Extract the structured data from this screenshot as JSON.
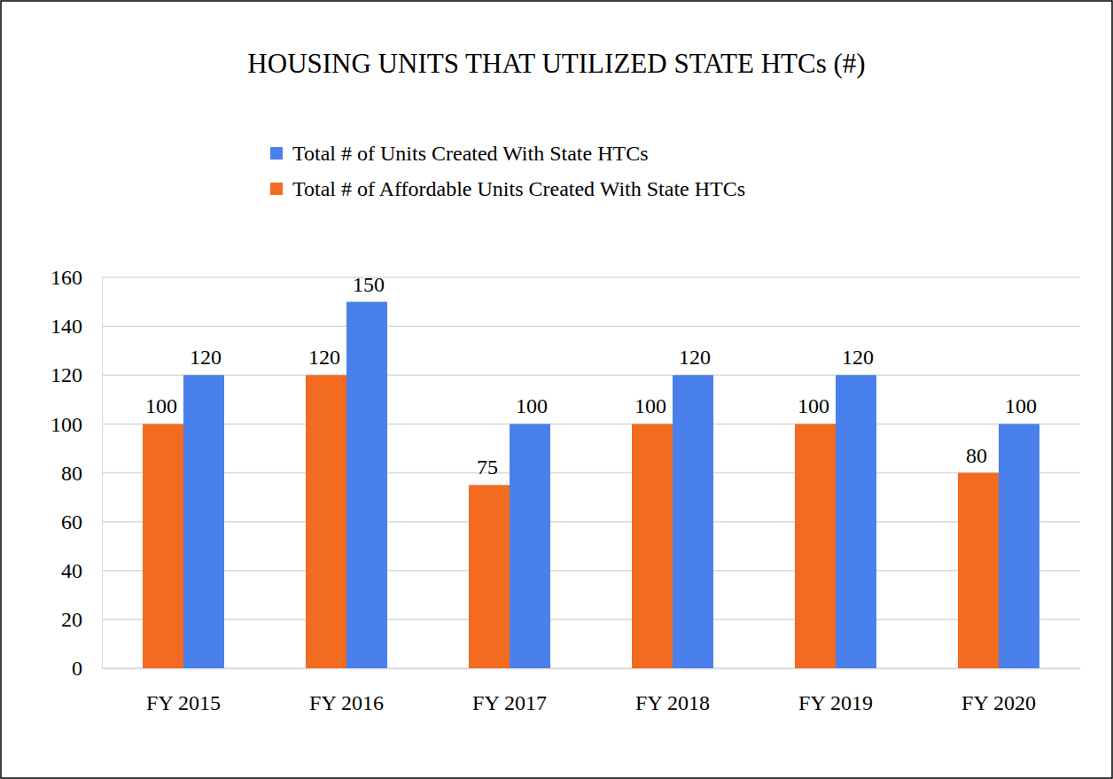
{
  "chart_data": {
    "type": "bar",
    "title": "HOUSING UNITS THAT UTILIZED STATE HTCs (#)",
    "categories": [
      "FY 2015",
      "FY 2016",
      "FY 2017",
      "FY 2018",
      "FY 2019",
      "FY 2020"
    ],
    "series": [
      {
        "name": "Total # of Units Created With State HTCs",
        "color": "#4a80ec",
        "values": [
          120,
          150,
          100,
          120,
          120,
          100
        ]
      },
      {
        "name": "Total # of Affordable Units Created With State HTCs",
        "color": "#f26b21",
        "values": [
          100,
          120,
          75,
          100,
          100,
          80
        ]
      }
    ],
    "ylim": [
      0,
      160
    ],
    "yticks": [
      0,
      20,
      40,
      60,
      80,
      100,
      120,
      140,
      160
    ],
    "grid": true,
    "legend": "top",
    "data_labels": true
  }
}
